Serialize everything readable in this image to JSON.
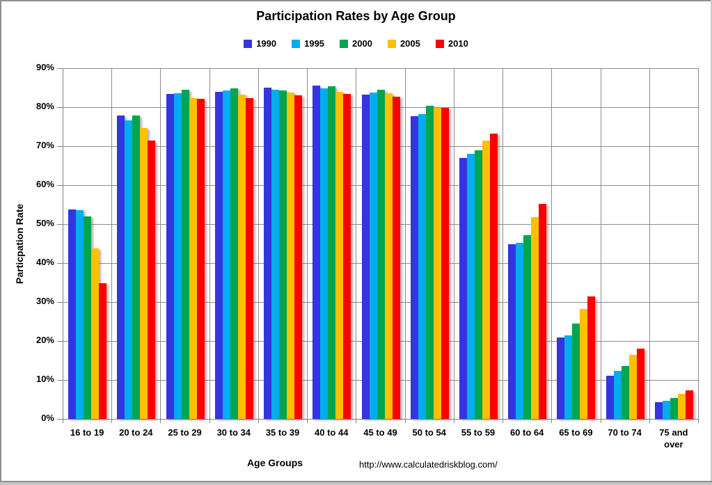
{
  "title": "Participation Rates by Age Group",
  "footer_url": "http://www.calculatedriskblog.com/",
  "chart_data": {
    "type": "bar",
    "title": "Participation Rates by Age Group",
    "xlabel": "Age Groups",
    "ylabel": "Particpation Rate",
    "ylim": [
      0,
      90
    ],
    "ytick_step": 10,
    "ytick_suffix": "%",
    "grid": true,
    "legend_position": "top",
    "categories": [
      "16 to 19",
      "20 to 24",
      "25 to 29",
      "30 to 34",
      "35 to 39",
      "40 to 44",
      "45 to 49",
      "50 to 54",
      "55 to 59",
      "60 to 64",
      "65 to 69",
      "70 to 74",
      "75 and over"
    ],
    "series": [
      {
        "name": "1990",
        "color": "#3434E0",
        "values": [
          53.7,
          77.8,
          83.4,
          84.0,
          85.0,
          85.5,
          83.2,
          77.6,
          67.0,
          44.8,
          20.9,
          11.1,
          4.2
        ]
      },
      {
        "name": "1995",
        "color": "#00AEEF",
        "values": [
          53.5,
          76.6,
          83.5,
          84.2,
          84.4,
          84.9,
          83.7,
          78.2,
          68.1,
          45.1,
          21.4,
          12.3,
          4.7
        ]
      },
      {
        "name": "2000",
        "color": "#00A550",
        "values": [
          52.0,
          77.8,
          84.5,
          84.8,
          84.3,
          85.4,
          84.5,
          80.4,
          69.0,
          47.2,
          24.5,
          13.5,
          5.3
        ]
      },
      {
        "name": "2005",
        "color": "#FFC000",
        "values": [
          43.7,
          74.6,
          82.4,
          83.3,
          83.7,
          83.9,
          83.5,
          79.9,
          71.5,
          51.7,
          28.2,
          16.5,
          6.4
        ]
      },
      {
        "name": "2010",
        "color": "#FA0000",
        "values": [
          34.9,
          71.4,
          82.1,
          82.4,
          83.1,
          83.4,
          82.6,
          79.8,
          73.3,
          55.2,
          31.5,
          18.0,
          7.4
        ]
      }
    ]
  }
}
